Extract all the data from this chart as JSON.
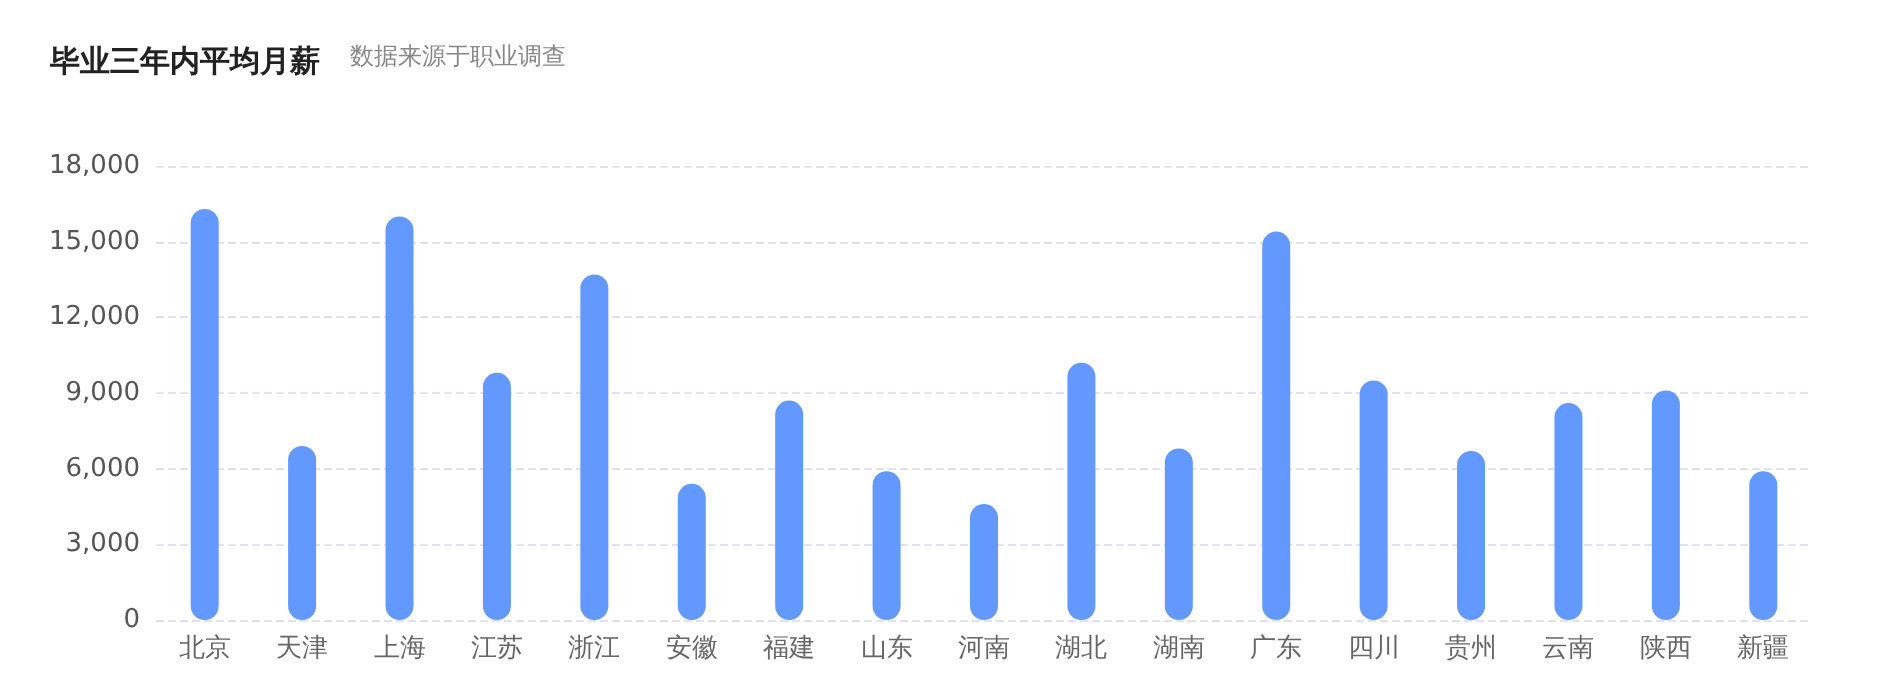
{
  "chart_data": {
    "type": "bar",
    "title": "毕业三年内平均月薪",
    "subtitle": "数据来源于职业调查",
    "categories": [
      "北京",
      "天津",
      "上海",
      "江苏",
      "浙江",
      "安徽",
      "福建",
      "山东",
      "河南",
      "湖北",
      "湖南",
      "广东",
      "四川",
      "贵州",
      "云南",
      "陕西",
      "新疆"
    ],
    "values": [
      16300,
      6900,
      16000,
      9800,
      13700,
      5400,
      8700,
      5900,
      4600,
      10200,
      6800,
      15400,
      9500,
      6700,
      8600,
      9100,
      5900
    ],
    "color": "#6398ff",
    "ylim": [
      0,
      18000
    ],
    "yticks": [
      0,
      {
        "value": 3000,
        "label": "3,000"
      },
      {
        "value": 6000,
        "label": "6,000"
      },
      {
        "value": 9000,
        "label": "9,000"
      },
      {
        "value": 12000,
        "label": "12,000"
      },
      {
        "value": 15000,
        "label": "15,000"
      },
      {
        "value": 18000,
        "label": "18,000"
      }
    ],
    "grid": "y"
  }
}
